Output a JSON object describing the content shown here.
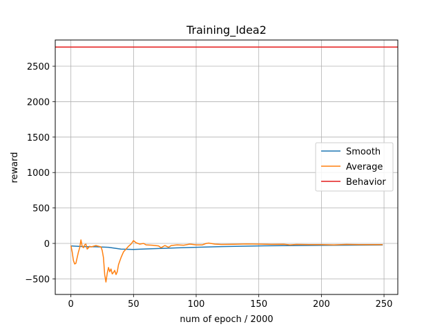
{
  "chart_data": {
    "type": "line",
    "title": "Training_Idea2",
    "xlabel": "num of epoch / 2000",
    "ylabel": "reward",
    "xlim": [
      -12.5,
      261
    ],
    "ylim": [
      -720,
      2870
    ],
    "xticks": [
      0,
      50,
      100,
      150,
      200,
      250
    ],
    "yticks": [
      -500,
      0,
      500,
      1000,
      1500,
      2000,
      2500
    ],
    "ytick_labels": [
      "−500",
      "0",
      "500",
      "1000",
      "1500",
      "2000",
      "2500"
    ],
    "grid": true,
    "legend_position": "center-right",
    "series": [
      {
        "name": "Smooth",
        "color": "#1f77b4",
        "x": [
          0,
          10,
          20,
          30,
          40,
          50,
          60,
          70,
          80,
          100,
          120,
          150,
          200,
          249
        ],
        "y": [
          -35,
          -45,
          -48,
          -55,
          -80,
          -85,
          -78,
          -72,
          -65,
          -55,
          -45,
          -35,
          -27,
          -22
        ]
      },
      {
        "name": "Average",
        "color": "#ff7f0e",
        "x": [
          0,
          1,
          2,
          3,
          4,
          5,
          6,
          7,
          8,
          9,
          10,
          11,
          12,
          13,
          14,
          15,
          16,
          18,
          20,
          22,
          24,
          25,
          26,
          27,
          28,
          29,
          30,
          31,
          32,
          33,
          34,
          35,
          36,
          37,
          38,
          40,
          42,
          44,
          46,
          48,
          50,
          52,
          55,
          58,
          60,
          65,
          70,
          72,
          75,
          78,
          80,
          85,
          90,
          95,
          100,
          105,
          108,
          110,
          115,
          120,
          130,
          140,
          150,
          160,
          170,
          175,
          180,
          190,
          200,
          210,
          220,
          230,
          240,
          249
        ],
        "y": [
          -30,
          -120,
          -240,
          -290,
          -280,
          -200,
          -120,
          -60,
          50,
          -40,
          -60,
          -20,
          -10,
          -80,
          -60,
          -40,
          -50,
          -40,
          -30,
          -40,
          -50,
          -100,
          -200,
          -440,
          -545,
          -420,
          -340,
          -400,
          -360,
          -430,
          -410,
          -380,
          -440,
          -400,
          -300,
          -200,
          -120,
          -80,
          -40,
          -10,
          40,
          10,
          -10,
          0,
          -20,
          -25,
          -35,
          -60,
          -30,
          -55,
          -30,
          -20,
          -25,
          -10,
          -20,
          -20,
          0,
          5,
          -10,
          -15,
          -12,
          -8,
          -10,
          -14,
          -12,
          -20,
          -15,
          -18,
          -17,
          -20,
          -15,
          -18,
          -17,
          -18
        ]
      },
      {
        "name": "Behavior",
        "color": "#e41a1a",
        "x": [
          -12.5,
          261
        ],
        "y": [
          2770,
          2770
        ]
      }
    ]
  }
}
